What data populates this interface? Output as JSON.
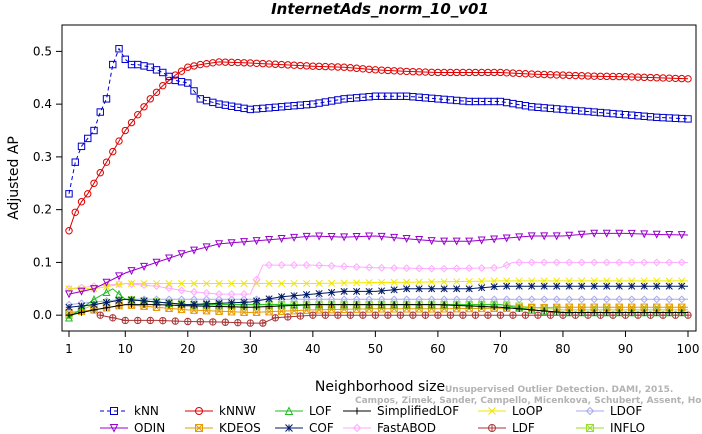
{
  "chart_data": {
    "type": "line",
    "title": "InternetAds_norm_10_v01",
    "xlabel": "Neighborhood size",
    "ylabel": "Adjusted AP",
    "xlim": [
      1,
      100
    ],
    "ylim": [
      -0.03,
      0.55
    ],
    "x_ticks": [
      1,
      10,
      20,
      30,
      40,
      50,
      60,
      70,
      80,
      90,
      100
    ],
    "y_ticks": [
      0.0,
      0.1,
      0.2,
      0.3,
      0.4,
      0.5
    ],
    "y_tick_labels": [
      "0.0",
      "0.1",
      "0.2",
      "0.3",
      "0.4",
      "0.5"
    ],
    "grid": false,
    "legend_position": "bottom",
    "watermark": {
      "line1": "Unsupervised Outlier Detection. DAMI, 2015.",
      "line2": "Campos, Zimek, Sander, Campello, Micenkova, Schubert, Assent, Houle"
    },
    "series": [
      {
        "name": "kNN",
        "color": "#0000cc",
        "marker": "square",
        "dash": "4,3",
        "points": [
          [
            1,
            0.23
          ],
          [
            2,
            0.29
          ],
          [
            3,
            0.32
          ],
          [
            4,
            0.335
          ],
          [
            5,
            0.35
          ],
          [
            6,
            0.385
          ],
          [
            7,
            0.41
          ],
          [
            8,
            0.475
          ],
          [
            9,
            0.505
          ],
          [
            10,
            0.485
          ],
          [
            11,
            0.475
          ],
          [
            12,
            0.475
          ],
          [
            14,
            0.47
          ],
          [
            16,
            0.46
          ],
          [
            18,
            0.445
          ],
          [
            20,
            0.44
          ],
          [
            22,
            0.41
          ],
          [
            25,
            0.4
          ],
          [
            30,
            0.39
          ],
          [
            35,
            0.395
          ],
          [
            40,
            0.4
          ],
          [
            45,
            0.41
          ],
          [
            50,
            0.415
          ],
          [
            55,
            0.415
          ],
          [
            60,
            0.41
          ],
          [
            65,
            0.405
          ],
          [
            70,
            0.405
          ],
          [
            75,
            0.395
          ],
          [
            80,
            0.39
          ],
          [
            85,
            0.385
          ],
          [
            90,
            0.38
          ],
          [
            95,
            0.375
          ],
          [
            100,
            0.372
          ]
        ]
      },
      {
        "name": "ODIN",
        "color": "#9900cc",
        "marker": "triangle-down",
        "dash": "",
        "points": [
          [
            1,
            0.04
          ],
          [
            5,
            0.05
          ],
          [
            10,
            0.08
          ],
          [
            15,
            0.1
          ],
          [
            20,
            0.12
          ],
          [
            25,
            0.135
          ],
          [
            30,
            0.14
          ],
          [
            35,
            0.145
          ],
          [
            40,
            0.15
          ],
          [
            45,
            0.148
          ],
          [
            50,
            0.15
          ],
          [
            55,
            0.145
          ],
          [
            60,
            0.14
          ],
          [
            65,
            0.14
          ],
          [
            70,
            0.145
          ],
          [
            75,
            0.15
          ],
          [
            80,
            0.15
          ],
          [
            85,
            0.155
          ],
          [
            90,
            0.155
          ],
          [
            95,
            0.153
          ],
          [
            100,
            0.152
          ]
        ]
      },
      {
        "name": "kNNW",
        "color": "#dd0000",
        "marker": "circle",
        "dash": "",
        "points": [
          [
            1,
            0.16
          ],
          [
            2,
            0.195
          ],
          [
            3,
            0.215
          ],
          [
            4,
            0.23
          ],
          [
            5,
            0.25
          ],
          [
            6,
            0.27
          ],
          [
            7,
            0.29
          ],
          [
            8,
            0.31
          ],
          [
            9,
            0.33
          ],
          [
            10,
            0.35
          ],
          [
            12,
            0.38
          ],
          [
            14,
            0.41
          ],
          [
            16,
            0.435
          ],
          [
            18,
            0.455
          ],
          [
            20,
            0.47
          ],
          [
            22,
            0.475
          ],
          [
            25,
            0.48
          ],
          [
            30,
            0.478
          ],
          [
            35,
            0.475
          ],
          [
            40,
            0.472
          ],
          [
            45,
            0.47
          ],
          [
            50,
            0.465
          ],
          [
            55,
            0.462
          ],
          [
            60,
            0.46
          ],
          [
            65,
            0.46
          ],
          [
            70,
            0.46
          ],
          [
            75,
            0.457
          ],
          [
            80,
            0.455
          ],
          [
            85,
            0.453
          ],
          [
            90,
            0.452
          ],
          [
            95,
            0.45
          ],
          [
            100,
            0.448
          ]
        ]
      },
      {
        "name": "KDEOS",
        "color": "#e69900",
        "marker": "square-x",
        "dash": "",
        "points": [
          [
            1,
            0.005
          ],
          [
            5,
            0.01
          ],
          [
            10,
            0.02
          ],
          [
            15,
            0.015
          ],
          [
            20,
            0.01
          ],
          [
            30,
            0.005
          ],
          [
            40,
            0.01
          ],
          [
            50,
            0.012
          ],
          [
            60,
            0.012
          ],
          [
            70,
            0.013
          ],
          [
            80,
            0.015
          ],
          [
            90,
            0.015
          ],
          [
            100,
            0.015
          ]
        ]
      },
      {
        "name": "LOF",
        "color": "#22bb22",
        "marker": "triangle",
        "dash": "",
        "points": [
          [
            1,
            -0.005
          ],
          [
            5,
            0.03
          ],
          [
            8,
            0.05
          ],
          [
            10,
            0.03
          ],
          [
            15,
            0.025
          ],
          [
            20,
            0.02
          ],
          [
            30,
            0.02
          ],
          [
            40,
            0.02
          ],
          [
            50,
            0.02
          ],
          [
            60,
            0.02
          ],
          [
            70,
            0.02
          ],
          [
            75,
            0.01
          ],
          [
            80,
            0.005
          ],
          [
            90,
            0.005
          ],
          [
            100,
            0.005
          ]
        ]
      },
      {
        "name": "COF",
        "color": "#001a66",
        "marker": "asterisk",
        "dash": "",
        "points": [
          [
            1,
            0.015
          ],
          [
            5,
            0.02
          ],
          [
            10,
            0.03
          ],
          [
            15,
            0.025
          ],
          [
            20,
            0.02
          ],
          [
            30,
            0.025
          ],
          [
            35,
            0.035
          ],
          [
            40,
            0.04
          ],
          [
            45,
            0.045
          ],
          [
            50,
            0.045
          ],
          [
            55,
            0.05
          ],
          [
            60,
            0.05
          ],
          [
            65,
            0.05
          ],
          [
            70,
            0.055
          ],
          [
            75,
            0.055
          ],
          [
            80,
            0.055
          ],
          [
            90,
            0.055
          ],
          [
            100,
            0.055
          ]
        ]
      },
      {
        "name": "SimplifiedLOF",
        "color": "#000000",
        "marker": "plus",
        "dash": "",
        "points": [
          [
            1,
            0.0
          ],
          [
            5,
            0.01
          ],
          [
            10,
            0.02
          ],
          [
            15,
            0.02
          ],
          [
            20,
            0.018
          ],
          [
            30,
            0.015
          ],
          [
            40,
            0.02
          ],
          [
            50,
            0.02
          ],
          [
            60,
            0.02
          ],
          [
            70,
            0.015
          ],
          [
            80,
            0.005
          ],
          [
            90,
            0.005
          ],
          [
            100,
            0.005
          ]
        ]
      },
      {
        "name": "FastABOD",
        "color": "#ffaaff",
        "marker": "diamond",
        "dash": "",
        "points": [
          [
            1,
            0.05
          ],
          [
            5,
            0.055
          ],
          [
            10,
            0.06
          ],
          [
            15,
            0.055
          ],
          [
            20,
            0.045
          ],
          [
            25,
            0.04
          ],
          [
            30,
            0.04
          ],
          [
            32,
            0.095
          ],
          [
            40,
            0.095
          ],
          [
            50,
            0.09
          ],
          [
            60,
            0.088
          ],
          [
            70,
            0.09
          ],
          [
            72,
            0.1
          ],
          [
            80,
            0.1
          ],
          [
            90,
            0.1
          ],
          [
            100,
            0.1
          ]
        ]
      },
      {
        "name": "LoOP",
        "color": "#f2e600",
        "marker": "x",
        "dash": "",
        "points": [
          [
            1,
            0.05
          ],
          [
            5,
            0.05
          ],
          [
            10,
            0.06
          ],
          [
            15,
            0.06
          ],
          [
            20,
            0.06
          ],
          [
            30,
            0.06
          ],
          [
            40,
            0.06
          ],
          [
            50,
            0.062
          ],
          [
            60,
            0.063
          ],
          [
            70,
            0.065
          ],
          [
            80,
            0.065
          ],
          [
            90,
            0.065
          ],
          [
            100,
            0.065
          ]
        ]
      },
      {
        "name": "LDF",
        "color": "#aa3333",
        "marker": "circle-plus",
        "dash": "",
        "points": [
          [
            6,
            0.0
          ],
          [
            8,
            -0.005
          ],
          [
            10,
            -0.01
          ],
          [
            15,
            -0.01
          ],
          [
            20,
            -0.012
          ],
          [
            25,
            -0.013
          ],
          [
            30,
            -0.015
          ],
          [
            32,
            -0.015
          ],
          [
            34,
            -0.005
          ],
          [
            40,
            0.0
          ],
          [
            50,
            0.0
          ],
          [
            60,
            0.0
          ],
          [
            70,
            0.0
          ],
          [
            80,
            0.0
          ],
          [
            90,
            0.0
          ],
          [
            100,
            0.0
          ]
        ]
      },
      {
        "name": "LDOF",
        "color": "#aaaaee",
        "marker": "diamond",
        "dash": "",
        "points": [
          [
            1,
            0.02
          ],
          [
            5,
            0.025
          ],
          [
            10,
            0.03
          ],
          [
            20,
            0.03
          ],
          [
            30,
            0.03
          ],
          [
            40,
            0.03
          ],
          [
            50,
            0.03
          ],
          [
            60,
            0.03
          ],
          [
            70,
            0.03
          ],
          [
            80,
            0.03
          ],
          [
            90,
            0.03
          ],
          [
            100,
            0.03
          ]
        ]
      },
      {
        "name": "INFLO",
        "color": "#99dd33",
        "marker": "square-x",
        "dash": "",
        "points": [
          [
            1,
            0.0
          ],
          [
            5,
            0.02
          ],
          [
            10,
            0.03
          ],
          [
            20,
            0.02
          ],
          [
            30,
            0.02
          ],
          [
            40,
            0.02
          ],
          [
            50,
            0.02
          ],
          [
            60,
            0.02
          ],
          [
            70,
            0.02
          ],
          [
            80,
            0.01
          ],
          [
            90,
            0.01
          ],
          [
            100,
            0.01
          ]
        ]
      }
    ],
    "legend_rows": [
      [
        "kNN",
        "kNNW",
        "LOF",
        "SimplifiedLOF",
        "LoOP",
        "LDOF"
      ],
      [
        "ODIN",
        "KDEOS",
        "COF",
        "FastABOD",
        "LDF",
        "INFLO"
      ]
    ]
  }
}
